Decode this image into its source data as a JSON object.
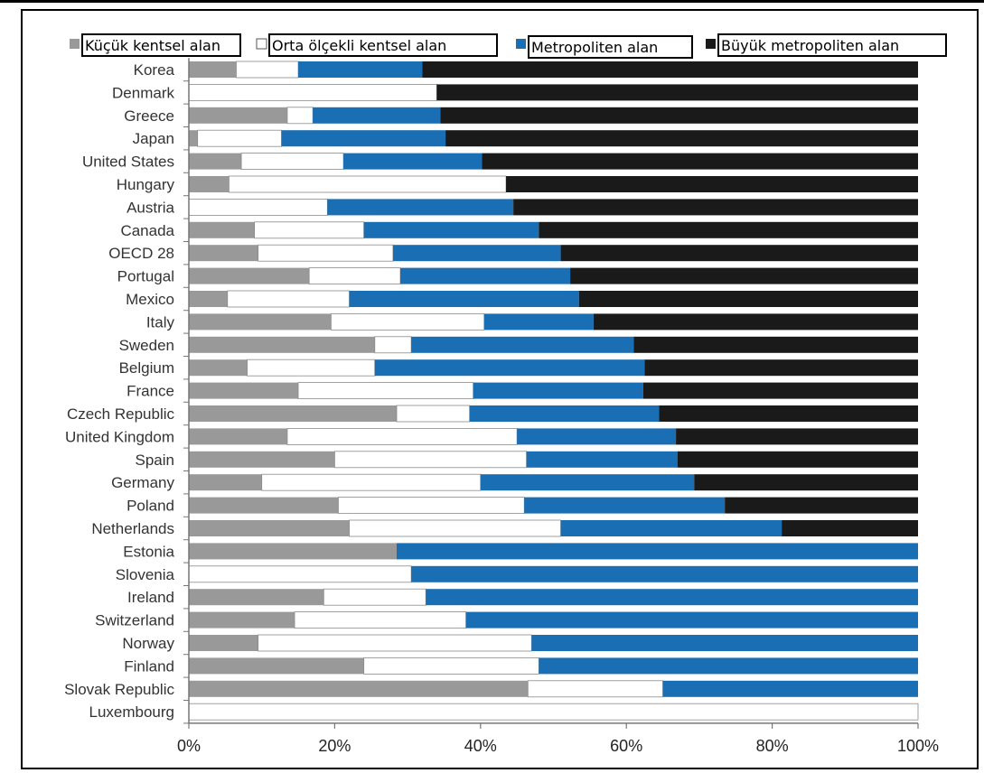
{
  "chart_data": {
    "type": "bar",
    "orientation": "horizontal",
    "stacked": true,
    "percent": true,
    "categories": [
      "Korea",
      "Denmark",
      "Greece",
      "Japan",
      "United States",
      "Hungary",
      "Austria",
      "Canada",
      "OECD 28",
      "Portugal",
      "Mexico",
      "Italy",
      "Sweden",
      "Belgium",
      "France",
      "Czech Republic",
      "United Kingdom",
      "Spain",
      "Germany",
      "Poland",
      "Netherlands",
      "Estonia",
      "Slovenia",
      "Ireland",
      "Switzerland",
      "Norway",
      "Finland",
      "Slovak Republic",
      "Luxembourg"
    ],
    "series": [
      {
        "name": "Küçük kentsel alan",
        "color": "#999999",
        "fill": "#999999",
        "values": [
          6.5,
          0,
          13.5,
          1.2,
          7.2,
          5.5,
          0,
          9,
          9.5,
          16.5,
          5.3,
          19.5,
          25.5,
          8,
          15,
          28.5,
          13.5,
          20,
          10,
          20.5,
          22,
          28.5,
          0,
          18.5,
          14.5,
          9.5,
          24,
          46.5,
          0
        ]
      },
      {
        "name": "Orta ölçekli kentsel alan",
        "color": "#ffffff",
        "fill": "#ffffff",
        "values": [
          8.5,
          34,
          3.5,
          11.5,
          14,
          38,
          19,
          15,
          18.5,
          12.5,
          16.7,
          21,
          5,
          17.5,
          24,
          10,
          31.5,
          26.3,
          30,
          25.5,
          29,
          0,
          30.5,
          14,
          23.5,
          37.5,
          24,
          18.5,
          100
        ]
      },
      {
        "name": "Metropoliten alan",
        "color": "#1a6eb3",
        "fill": "#1a6eb3",
        "values": [
          17,
          0,
          17.5,
          22.5,
          19,
          0,
          25.5,
          24,
          23,
          23.3,
          31.5,
          15,
          30.5,
          37,
          23.3,
          26,
          21.8,
          20.7,
          29.3,
          27.5,
          30.3,
          71.5,
          69.5,
          67.5,
          62,
          53,
          52,
          35,
          0
        ]
      },
      {
        "name": "Büyük metropoliten alan",
        "color": "#1a1a1a",
        "fill": "#1a1a1a",
        "values": [
          68,
          66,
          65.5,
          64.8,
          59.8,
          56.5,
          55.5,
          52,
          49,
          47.7,
          46.5,
          44.5,
          39,
          37.5,
          37.7,
          35.5,
          33.2,
          33,
          30.7,
          26.5,
          18.7,
          0,
          0,
          0,
          0,
          0,
          0,
          0,
          0
        ]
      }
    ],
    "xlim": [
      0,
      100
    ],
    "xticks": [
      "0%",
      "20%",
      "40%",
      "60%",
      "80%",
      "100%"
    ],
    "legend_position": "top",
    "grid": false
  }
}
